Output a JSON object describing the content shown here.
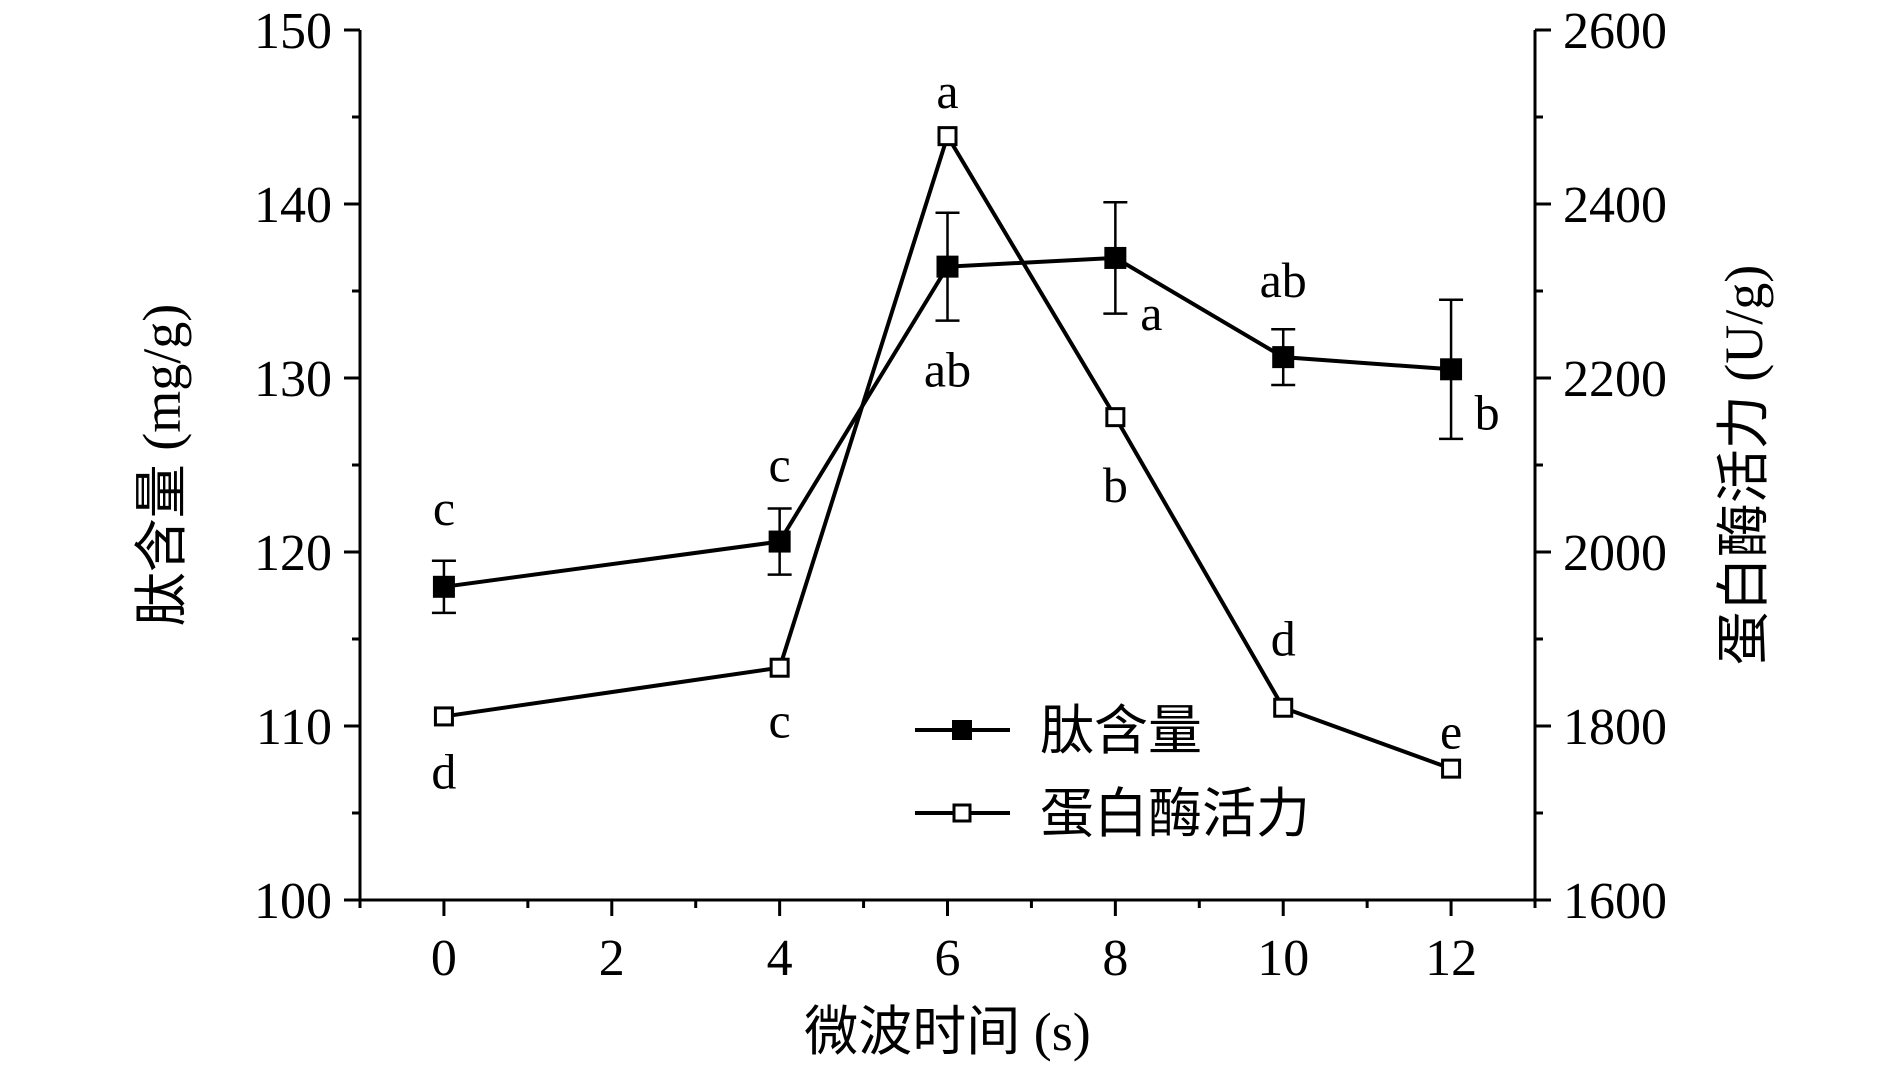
{
  "chart_data": {
    "type": "line",
    "xlabel": "微波时间 (s)",
    "ylabel_left": "肽含量 (mg/g)",
    "ylabel_right": "蛋白酶活力 (U/g)",
    "x_ticks": [
      0,
      2,
      4,
      6,
      8,
      10,
      12
    ],
    "x_range": [
      -1,
      13
    ],
    "y_left_ticks": [
      100,
      110,
      120,
      130,
      140,
      150
    ],
    "y_left_range": [
      100,
      150
    ],
    "y_right_ticks": [
      1600,
      1800,
      2000,
      2200,
      2400,
      2600
    ],
    "y_right_range": [
      1600,
      2600
    ],
    "grid": false,
    "legend_position": "bottom-right",
    "series": [
      {
        "name": "肽含量",
        "axis": "left",
        "marker": "filled-square",
        "x": [
          0,
          4,
          6,
          8,
          10,
          12
        ],
        "y": [
          118.0,
          120.6,
          136.4,
          136.9,
          131.2,
          130.5
        ],
        "error": [
          1.5,
          1.9,
          3.1,
          3.2,
          1.6,
          4.0
        ],
        "letters": [
          "c",
          "c",
          "ab",
          "a",
          "ab",
          "b"
        ]
      },
      {
        "name": "蛋白酶活力",
        "axis": "right",
        "marker": "open-square",
        "x": [
          0,
          4,
          6,
          8,
          10,
          12
        ],
        "y": [
          1811,
          1867,
          2478,
          2155,
          1821,
          1751
        ],
        "error": [
          0,
          0,
          0,
          0,
          0,
          0
        ],
        "letters": [
          "d",
          "c",
          "a",
          "b",
          "d",
          "e"
        ]
      }
    ]
  }
}
